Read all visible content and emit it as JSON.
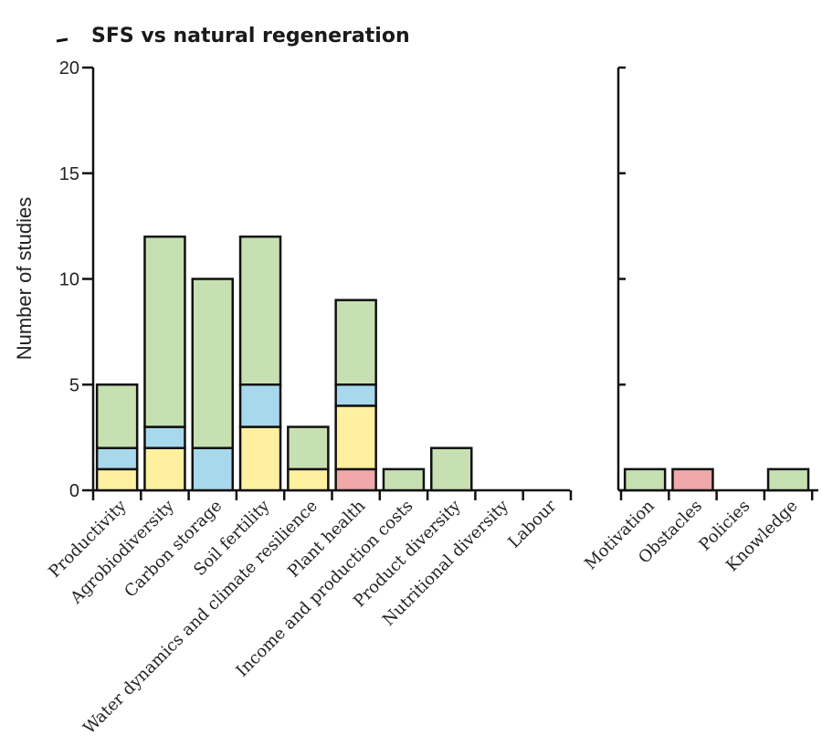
{
  "chart_data": {
    "type": "bar",
    "stacked": true,
    "title": "SFS vs natural regeneration",
    "ylabel": "Number of studies",
    "ylim": [
      0,
      20
    ],
    "yticks": [
      0,
      5,
      10,
      15,
      20
    ],
    "segment_colors": [
      "#f0a8a8",
      "#fff0a0",
      "#a8d8ec",
      "#c7e0b2"
    ],
    "panels": [
      {
        "categories": [
          "Productivity",
          "Agrobiodiversity",
          "Carbon storage",
          "Soil fertility",
          "Water dynamics and climate resilience",
          "Plant health",
          "Income and production costs",
          "Product diversity",
          "Nutritional diversity",
          "Labour"
        ],
        "stacks": [
          [
            0,
            1,
            1,
            3
          ],
          [
            0,
            2,
            1,
            9
          ],
          [
            0,
            0,
            2,
            8
          ],
          [
            0,
            3,
            2,
            7
          ],
          [
            0,
            1,
            0,
            2
          ],
          [
            1,
            3,
            1,
            4
          ],
          [
            0,
            0,
            0,
            1
          ],
          [
            0,
            0,
            0,
            2
          ],
          [
            0,
            0,
            0,
            0
          ],
          [
            0,
            0,
            0,
            0
          ]
        ]
      },
      {
        "categories": [
          "Motivation",
          "Obstacles",
          "Policies",
          "Knowledge"
        ],
        "stacks": [
          [
            0,
            0,
            0,
            1
          ],
          [
            1,
            0,
            0,
            0
          ],
          [
            0,
            0,
            0,
            0
          ],
          [
            0,
            0,
            0,
            1
          ]
        ]
      }
    ]
  }
}
